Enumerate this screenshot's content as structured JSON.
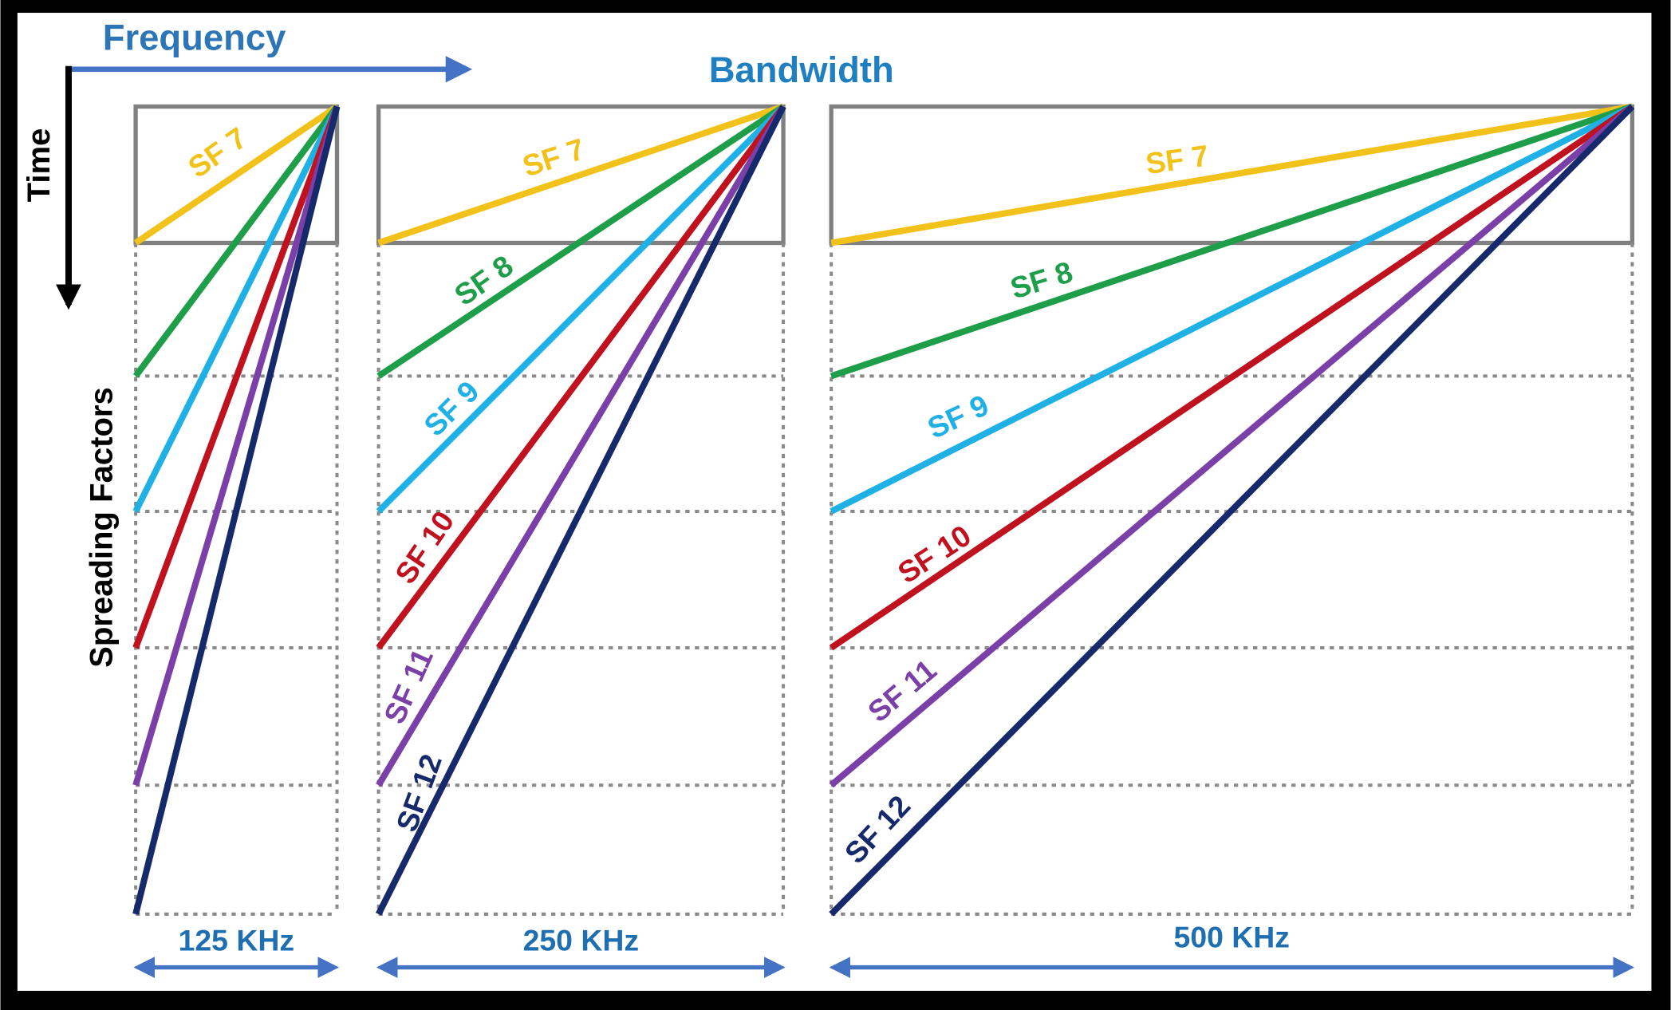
{
  "header": {
    "frequency": "Frequency",
    "time": "Time",
    "bandwidth": "Bandwidth",
    "spreading_factors": "Spreading Factors"
  },
  "panels": [
    {
      "bandwidth": "125 KHz",
      "labels": [
        "SF 7"
      ]
    },
    {
      "bandwidth": "250 KHz",
      "labels": [
        "SF 7",
        "SF 8",
        "SF 9",
        "SF 10",
        "SF 11",
        "SF 12"
      ]
    },
    {
      "bandwidth": "500 KHz",
      "labels": [
        "SF 7",
        "SF 8",
        "SF 9",
        "SF 10",
        "SF 11",
        "SF 12"
      ]
    }
  ]
}
